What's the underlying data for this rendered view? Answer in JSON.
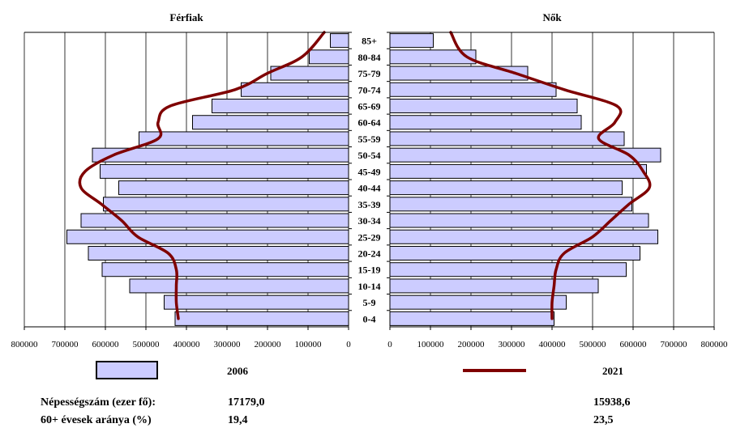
{
  "chart_data": {
    "type": "bar",
    "subtype": "population-pyramid",
    "panel_titles": {
      "left": "Férfiak",
      "right": "Nők"
    },
    "categories": [
      "85+",
      "80-84",
      "75-79",
      "70-74",
      "65-69",
      "60-64",
      "55-59",
      "50-54",
      "45-49",
      "40-44",
      "35-39",
      "30-34",
      "25-29",
      "20-24",
      "15-19",
      "10-14",
      "5-9",
      "0-4"
    ],
    "xlim": [
      0,
      800000
    ],
    "x_ticks_left": [
      "800000",
      "700000",
      "600000",
      "500000",
      "400000",
      "300000",
      "200000",
      "100000",
      "0"
    ],
    "x_ticks_right": [
      "0",
      "100000",
      "200000",
      "300000",
      "400000",
      "500000",
      "600000",
      "700000",
      "800000"
    ],
    "grid": "vertical",
    "bars": {
      "name": "2006",
      "color": "#ccccff",
      "men": [
        45000,
        97000,
        192000,
        265000,
        337000,
        385000,
        517000,
        632000,
        613000,
        567000,
        605000,
        660000,
        695000,
        642000,
        608000,
        540000,
        455000,
        428000
      ],
      "women": [
        107000,
        212000,
        340000,
        410000,
        462000,
        472000,
        578000,
        668000,
        633000,
        573000,
        597000,
        638000,
        661000,
        617000,
        583000,
        514000,
        435000,
        405000
      ]
    },
    "lines": {
      "name": "2021",
      "color": "#7f0000",
      "men": [
        60000,
        115000,
        200000,
        280000,
        440000,
        470000,
        470000,
        580000,
        650000,
        660000,
        610000,
        560000,
        520000,
        445000,
        425000,
        425000,
        425000,
        420000
      ],
      "women": [
        150000,
        190000,
        310000,
        430000,
        560000,
        555000,
        515000,
        590000,
        625000,
        640000,
        590000,
        545000,
        500000,
        430000,
        410000,
        405000,
        400000,
        400000
      ]
    },
    "legend": {
      "bar_label": "2006",
      "line_label": "2021",
      "placement": "bottom"
    }
  },
  "stats": {
    "population_label": "Népességszám (ezer fő):",
    "population_2006": "17179,0",
    "population_2021": "15938,6",
    "elderly_label": "60+ évesek aránya (%)",
    "elderly_2006": "19,4",
    "elderly_2021": "23,5"
  }
}
